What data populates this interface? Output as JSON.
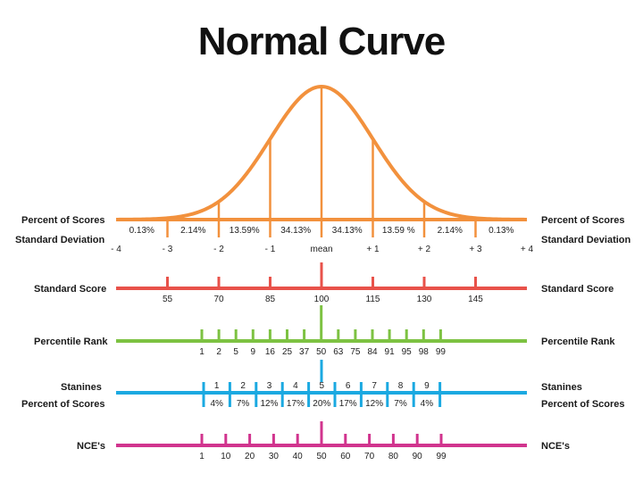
{
  "title": "Normal Curve",
  "colors": {
    "curve": "#f2913d",
    "standard_score": "#e8524a",
    "percentile": "#7dc242",
    "stanine": "#1ba9e1",
    "nce": "#d1348e"
  },
  "curve": {
    "left_labels": [
      "Percent of Scores",
      "Standard Deviation"
    ],
    "right_labels": [
      "Percent of Scores",
      "Standard Deviation"
    ],
    "percents": [
      "0.13%",
      "2.14%",
      "13.59%",
      "34.13%",
      "34.13%",
      "13.59 %",
      "2.14%",
      "0.13%"
    ],
    "sd_labels": [
      "- 4",
      "- 3",
      "- 2",
      "- 1",
      "mean",
      "+ 1",
      "+ 2",
      "+ 3",
      "+ 4"
    ]
  },
  "standard_score": {
    "label": "Standard Score",
    "values": [
      "55",
      "70",
      "85",
      "100",
      "115",
      "130",
      "145"
    ]
  },
  "percentile_rank": {
    "label": "Percentile Rank",
    "values": [
      "1",
      "2",
      "5",
      "9",
      "16",
      "25",
      "37",
      "50",
      "63",
      "75",
      "84",
      "91",
      "95",
      "98",
      "99"
    ]
  },
  "stanines": {
    "label": "Stanines",
    "label2": "Percent of Scores",
    "numbers": [
      "1",
      "2",
      "3",
      "4",
      "5",
      "6",
      "7",
      "8",
      "9"
    ],
    "percents": [
      "4%",
      "7%",
      "12%",
      "17%",
      "20%",
      "17%",
      "12%",
      "7%",
      "4%"
    ]
  },
  "nce": {
    "label": "NCE's",
    "values": [
      "1",
      "10",
      "20",
      "30",
      "40",
      "50",
      "60",
      "70",
      "80",
      "90",
      "99"
    ]
  }
}
